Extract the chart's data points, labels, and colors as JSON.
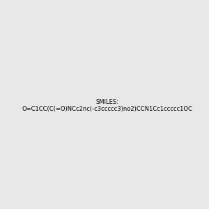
{
  "smiles": "O=C1CC(C(=O)NCc2nc(-c3ccccc3)no2)CCN1Cc1ccccc1OC",
  "image_size": 300,
  "background_color": "#e8e8e8",
  "title": ""
}
